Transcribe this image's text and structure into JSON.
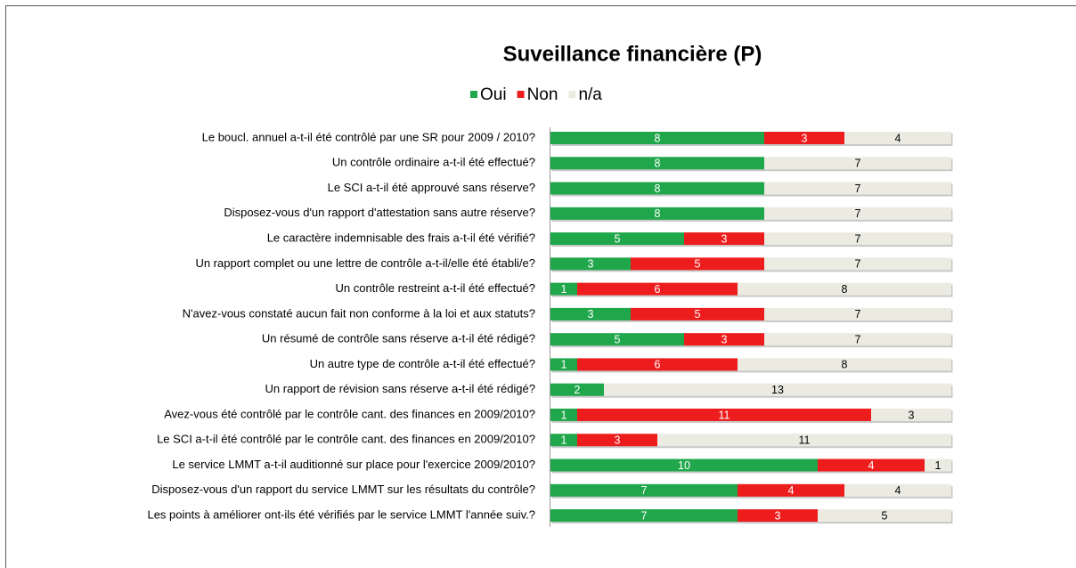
{
  "chart_data": {
    "type": "stacked-barh",
    "title": "Suveillance financière (P)",
    "categories": [
      "Le boucl. annuel a-t-il été contrôlé par une SR pour 2009 / 2010?",
      "Un contrôle ordinaire a-t-il été effectué?",
      "Le SCI a-t-il été approuvé sans réserve?",
      "Disposez-vous d'un rapport d'attestation sans autre réserve?",
      "Le caractère indemnisable des frais a-t-il été vérifié?",
      "Un rapport complet ou une lettre de contrôle a-t-il/elle été établi/e?",
      "Un contrôle restreint a-t-il été effectué?",
      "N'avez-vous  constaté aucun fait non conforme à la loi et aux statuts?",
      "Un résumé de contrôle sans réserve a-t-il été rédigé?",
      "Un autre type de contrôle a-t-il été effectué?",
      "Un rapport de révision sans réserve a-t-il été rédigé?",
      "Avez-vous été contrôlé par le contrôle cant. des finances en 2009/2010?",
      "Le SCI a-t-il été contrôlé par le contrôle cant. des finances en 2009/2010?",
      "Le service LMMT a-t-il auditionné sur place pour l'exercice 2009/2010?",
      "Disposez-vous d'un rapport du service LMMT sur les résultats du contrôle?",
      "Les points à améliorer ont-ils été vérifiés par le service LMMT l'année suiv.?"
    ],
    "series": [
      {
        "name": "Oui",
        "color": "#21a74b",
        "values": [
          8,
          8,
          8,
          8,
          5,
          3,
          1,
          3,
          5,
          1,
          2,
          1,
          1,
          10,
          7,
          7
        ]
      },
      {
        "name": "Non",
        "color": "#ee1d1d",
        "values": [
          3,
          0,
          0,
          0,
          3,
          5,
          6,
          5,
          3,
          6,
          0,
          11,
          3,
          4,
          4,
          3
        ]
      },
      {
        "name": "n/a",
        "color": "#ecebe2",
        "values": [
          4,
          7,
          7,
          7,
          7,
          7,
          8,
          7,
          7,
          8,
          13,
          3,
          11,
          1,
          4,
          5
        ]
      }
    ],
    "legend": "top"
  }
}
